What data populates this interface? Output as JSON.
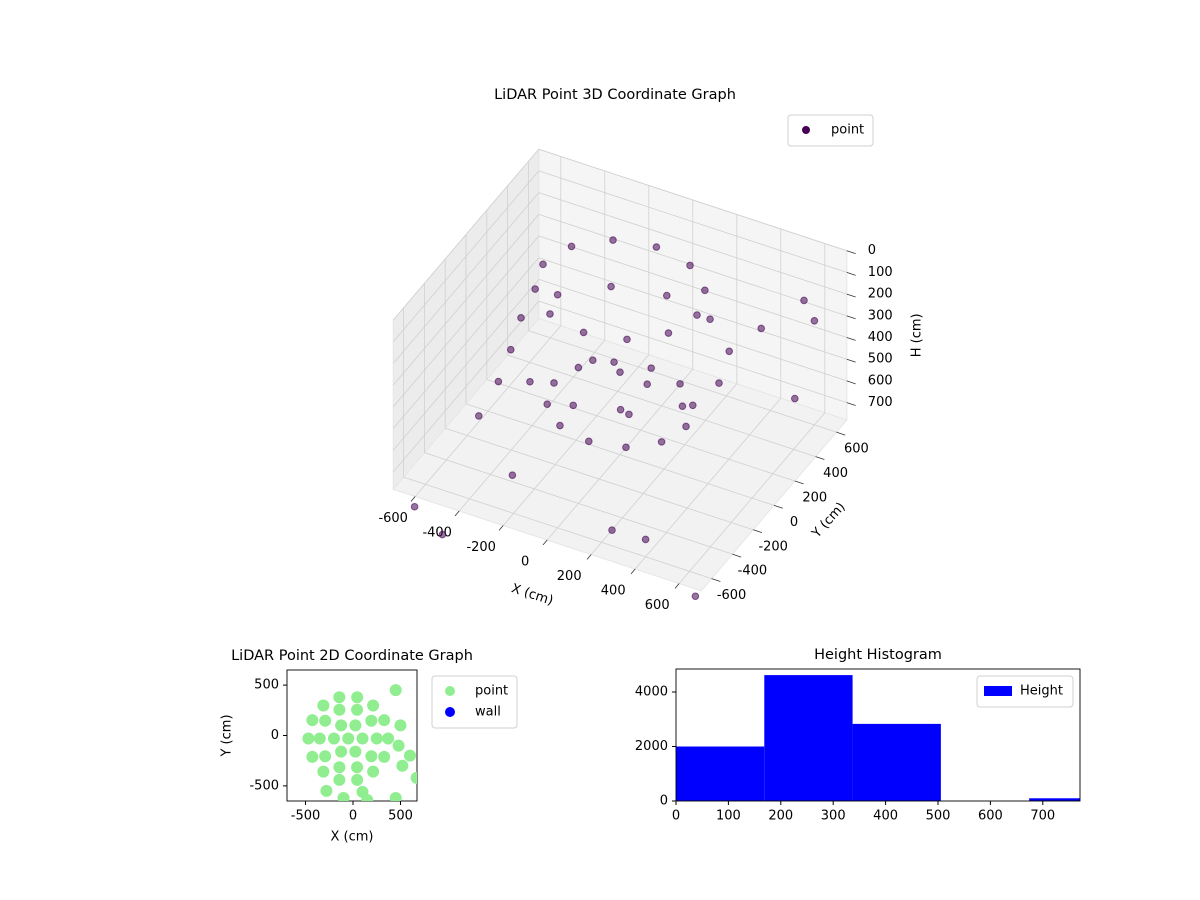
{
  "chart_data": [
    {
      "type": "scatter3d",
      "title": "LiDAR Point 3D Coordinate Graph",
      "xlabel": "X (cm)",
      "ylabel": "Y (cm)",
      "zlabel": "H (cm)",
      "xlim": [
        -700,
        700
      ],
      "ylim": [
        -700,
        700
      ],
      "zlim": [
        0,
        780
      ],
      "z_inverted": true,
      "xticks": [
        -600,
        -400,
        -200,
        0,
        200,
        400,
        600
      ],
      "yticks": [
        -600,
        -400,
        -200,
        0,
        200,
        400,
        600
      ],
      "zticks": [
        0,
        100,
        200,
        300,
        400,
        500,
        600,
        700
      ],
      "grid": true,
      "legend": "upper right",
      "series": [
        {
          "name": "point",
          "color": "#440154",
          "x": [
            350,
            303,
            175,
            0,
            -175,
            -303,
            -350,
            -303,
            -175,
            0,
            175,
            303,
            450,
            390,
            225,
            0,
            -225,
            -390,
            -450,
            -390,
            -225,
            0,
            225,
            390,
            300,
            260,
            150,
            0,
            -150,
            -260,
            -300,
            -260,
            -150,
            0,
            150,
            260,
            0,
            100,
            -100,
            50,
            -600,
            -500,
            -300,
            200,
            500,
            600,
            700,
            400,
            -650,
            -500,
            650,
            600
          ],
          "y": [
            0,
            175,
            303,
            350,
            303,
            175,
            0,
            -175,
            -303,
            -350,
            -303,
            -175,
            0,
            225,
            390,
            450,
            390,
            225,
            0,
            -225,
            -390,
            -450,
            -390,
            -225,
            0,
            150,
            260,
            300,
            260,
            150,
            0,
            -150,
            -260,
            -300,
            -260,
            -150,
            0,
            50,
            -50,
            -100,
            100,
            -300,
            -400,
            -500,
            300,
            500,
            200,
            -600,
            -600,
            -650,
            -650,
            600
          ],
          "z": [
            20,
            20,
            20,
            20,
            20,
            20,
            20,
            20,
            20,
            20,
            20,
            20,
            300,
            300,
            300,
            300,
            300,
            300,
            300,
            300,
            300,
            300,
            300,
            300,
            550,
            550,
            550,
            550,
            550,
            550,
            550,
            550,
            550,
            550,
            550,
            550,
            400,
            450,
            350,
            500,
            700,
            600,
            750,
            780,
            200,
            150,
            400,
            700,
            900,
            950,
            850,
            300
          ]
        }
      ]
    },
    {
      "type": "scatter",
      "title": "LiDAR Point 2D Coordinate Graph",
      "xlabel": "X (cm)",
      "ylabel": "Y (cm)",
      "xlim": [
        -695,
        674
      ],
      "ylim": [
        -650,
        650
      ],
      "xticks": [
        -500,
        0,
        500
      ],
      "yticks": [
        -500,
        0,
        500
      ],
      "legend": "outside right",
      "series": [
        {
          "name": "point",
          "color": "#90ee90",
          "x": [
            -50,
            100,
            25,
            -125,
            -200,
            -125,
            25,
            250,
            193,
            43,
            -143,
            -293,
            -350,
            -293,
            -143,
            43,
            193,
            370,
            328,
            212,
            44,
            -144,
            -312,
            -428,
            -470,
            -428,
            -312,
            -144,
            44,
            212,
            328,
            450,
            500,
            480,
            520,
            600,
            670,
            -280,
            -100,
            100,
            150,
            450
          ],
          "y": [
            -30,
            -30,
            100,
            100,
            -30,
            -160,
            -160,
            -30,
            146,
            255,
            255,
            146,
            -30,
            -206,
            -315,
            -315,
            -206,
            -30,
            152,
            298,
            380,
            380,
            298,
            152,
            -30,
            -212,
            -358,
            -440,
            -440,
            -358,
            -212,
            450,
            100,
            -100,
            -300,
            -200,
            -420,
            -550,
            -620,
            -560,
            -640,
            -620
          ]
        },
        {
          "name": "wall",
          "color": "#0000ff",
          "x": [],
          "y": []
        }
      ]
    },
    {
      "type": "histogram",
      "title": "Height Histogram",
      "xlim": [
        0,
        771
      ],
      "ylim": [
        0,
        4844
      ],
      "xticks": [
        0,
        100,
        200,
        300,
        400,
        500,
        600,
        700
      ],
      "yticks": [
        0,
        2000,
        4000
      ],
      "legend": "upper right",
      "bins": [
        0,
        168.5,
        337,
        505.5,
        674,
        842.5
      ],
      "series": [
        {
          "name": "Height",
          "color": "#0000ff",
          "values": [
            2000,
            4620,
            2830,
            0,
            100
          ]
        }
      ]
    }
  ]
}
